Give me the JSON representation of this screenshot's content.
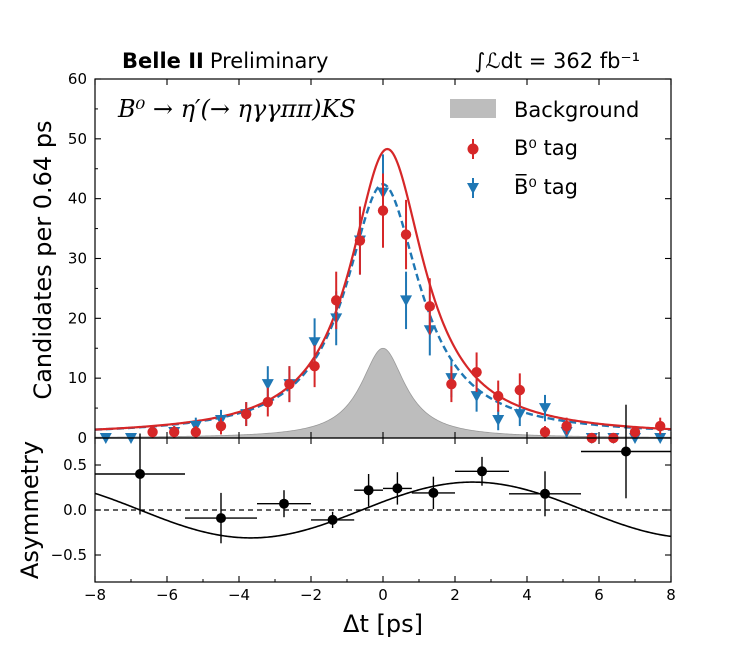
{
  "chart_data": [
    {
      "type": "scatter",
      "panel": "main",
      "header_left_bold": "Belle II",
      "header_left": "Preliminary",
      "luminosity_label": "∫ℒdt = 362 fb⁻¹",
      "title": "B⁰ → η′(→ ηγγππ)KS",
      "ylabel": "Candidates per 0.64 ps",
      "xlim": [
        -8,
        8
      ],
      "ylim": [
        0,
        60
      ],
      "yticks": [
        "0",
        "10",
        "20",
        "30",
        "40",
        "50",
        "60"
      ],
      "legend": {
        "position": "top-right",
        "background_label": "Background",
        "b0_label": "B⁰ tag",
        "b0bar_label": "B̅⁰ tag"
      },
      "colors": {
        "b0": "#d62728",
        "b0bar": "#1f77b4",
        "background": "#bdbdbd"
      },
      "series": [
        {
          "name": "B0 tag",
          "x": [
            -6.4,
            -5.8,
            -5.2,
            -4.5,
            -3.8,
            -3.2,
            -2.6,
            -1.9,
            -1.3,
            -0.64,
            0.0,
            0.64,
            1.3,
            1.9,
            2.6,
            3.2,
            3.8,
            4.5,
            5.1,
            5.8,
            6.4,
            7.0,
            7.7
          ],
          "y": [
            1,
            1,
            1,
            2,
            4,
            6,
            9,
            12,
            23,
            33,
            38,
            34,
            22,
            9,
            11,
            7,
            8,
            1,
            2,
            0,
            0,
            1,
            2
          ],
          "err": [
            1.0,
            1.0,
            1.0,
            1.4,
            2.0,
            2.4,
            3.0,
            3.5,
            4.8,
            5.7,
            6.2,
            5.8,
            4.7,
            3.0,
            3.3,
            2.6,
            2.8,
            1.0,
            1.4,
            0.5,
            0.5,
            1.0,
            1.4
          ]
        },
        {
          "name": "B0bar tag",
          "x": [
            -7.7,
            -7.0,
            -5.8,
            -5.2,
            -4.5,
            -3.8,
            -3.2,
            -2.6,
            -1.9,
            -1.3,
            -0.64,
            0.0,
            0.64,
            1.3,
            1.9,
            2.6,
            3.2,
            3.8,
            4.5,
            5.1,
            5.8,
            6.4,
            7.0,
            7.7
          ],
          "y": [
            0,
            0,
            1,
            2,
            3,
            4,
            9,
            9,
            16,
            20,
            33,
            41,
            23,
            18,
            10,
            7,
            3,
            4,
            5,
            1,
            0,
            0,
            0,
            0
          ],
          "err": [
            0.5,
            0.5,
            1.0,
            1.4,
            1.7,
            2.0,
            3.0,
            3.0,
            4.0,
            4.5,
            5.7,
            6.4,
            4.8,
            4.2,
            3.2,
            2.6,
            1.7,
            2.0,
            2.2,
            1.0,
            0.5,
            0.5,
            0.5,
            0.5
          ]
        }
      ],
      "fits": [
        {
          "name": "B0 tag fit",
          "peak": 48,
          "style": "solid"
        },
        {
          "name": "B0bar tag fit",
          "peak": 42,
          "style": "dashed"
        },
        {
          "name": "Background",
          "peak": 15,
          "style": "filled"
        }
      ]
    },
    {
      "type": "scatter",
      "panel": "asymmetry",
      "ylabel": "Asymmetry",
      "xlabel": "Δt [ps]",
      "xlim": [
        -8,
        8
      ],
      "ylim": [
        -0.8,
        0.8
      ],
      "xticks": [
        "−8",
        "−6",
        "−4",
        "−2",
        "0",
        "2",
        "4",
        "6",
        "8"
      ],
      "yticks": [
        "0.5",
        "0.0",
        "−0.5"
      ],
      "points": [
        {
          "x": -6.75,
          "xerr": 1.25,
          "y": 0.4,
          "yerr": 0.45
        },
        {
          "x": -4.5,
          "xerr": 1.0,
          "y": -0.09,
          "yerr": 0.28
        },
        {
          "x": -2.75,
          "xerr": 0.75,
          "y": 0.07,
          "yerr": 0.15
        },
        {
          "x": -1.4,
          "xerr": 0.6,
          "y": -0.11,
          "yerr": 0.09
        },
        {
          "x": -0.4,
          "xerr": 0.4,
          "y": 0.22,
          "yerr": 0.18
        },
        {
          "x": 0.4,
          "xerr": 0.4,
          "y": 0.24,
          "yerr": 0.18
        },
        {
          "x": 1.4,
          "xerr": 0.6,
          "y": 0.19,
          "yerr": 0.18
        },
        {
          "x": 2.75,
          "xerr": 0.75,
          "y": 0.43,
          "yerr": 0.16
        },
        {
          "x": 4.5,
          "xerr": 1.0,
          "y": 0.18,
          "yerr": 0.25
        },
        {
          "x": 6.75,
          "xerr": 1.25,
          "y": 0.65,
          "yerr": 0.52
        }
      ],
      "fit": {
        "type": "sine",
        "amplitude": 0.31,
        "omega": 0.51,
        "phase": 0.3
      }
    }
  ]
}
